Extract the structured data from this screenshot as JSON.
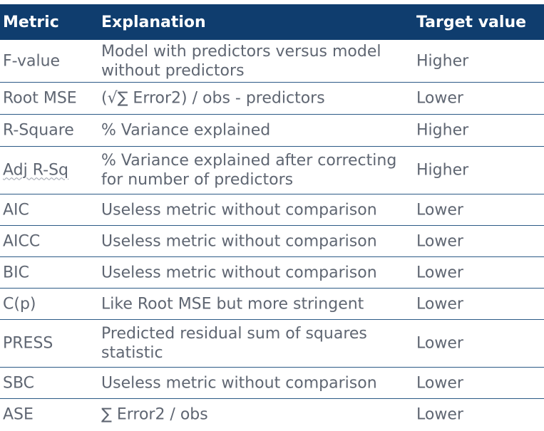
{
  "table": {
    "headers": {
      "metric": "Metric",
      "explanation": "Explanation",
      "target": "Target value"
    },
    "rows": [
      {
        "metric": "F-value",
        "explanation": "Model with predictors versus model without predictors",
        "target": "Higher"
      },
      {
        "metric": "Root MSE",
        "explanation": "(√∑ Error2) /  obs - predictors",
        "target": "Lower"
      },
      {
        "metric": "R-Square",
        "explanation": "% Variance explained",
        "target": "Higher"
      },
      {
        "metric": "Adj R-Sq",
        "explanation": "% Variance explained after correcting for number of predictors",
        "target": "Higher"
      },
      {
        "metric": "AIC",
        "explanation": "Useless metric without comparison",
        "target": "Lower"
      },
      {
        "metric": "AICC",
        "explanation": "Useless metric without comparison",
        "target": "Lower"
      },
      {
        "metric": "BIC",
        "explanation": "Useless metric without comparison",
        "target": "Lower"
      },
      {
        "metric": "C(p)",
        "explanation": "Like Root MSE but more stringent",
        "target": "Lower"
      },
      {
        "metric": "PRESS",
        "explanation": "Predicted residual sum of squares statistic",
        "target": "Lower"
      },
      {
        "metric": "SBC",
        "explanation": "Useless metric without comparison",
        "target": "Lower"
      },
      {
        "metric": "ASE",
        "explanation": "∑ Error2 / obs",
        "target": "Lower"
      }
    ]
  },
  "colors": {
    "header_bg": "#0f3d6e",
    "header_text": "#ffffff",
    "body_text": "#5f6672",
    "row_border": "#2c5a86"
  }
}
